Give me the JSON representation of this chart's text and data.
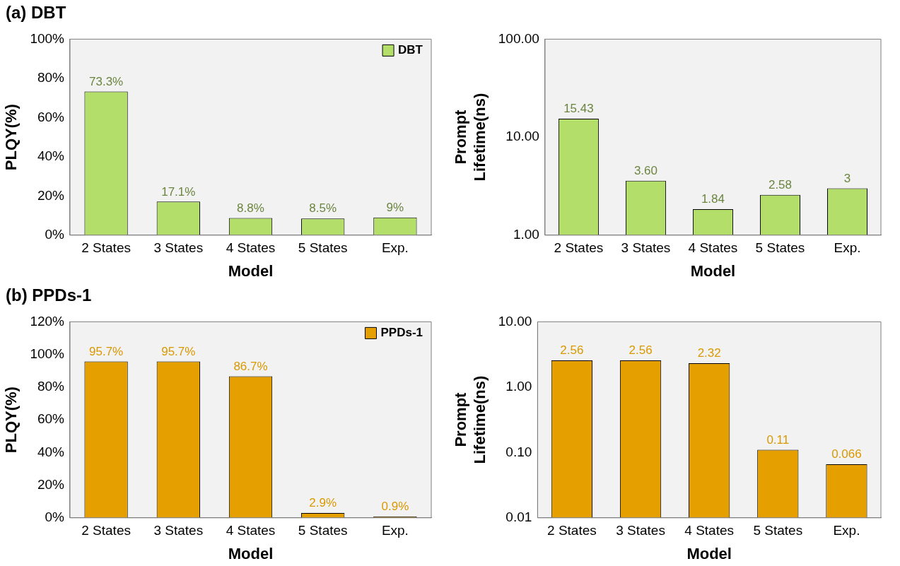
{
  "chart_data": [
    {
      "type": "bar",
      "title": "(a) DBT",
      "xlabel": "Model",
      "ylabel": "PLQY(%)",
      "categories": [
        "2 States",
        "3 States",
        "4 States",
        "5 States",
        "Exp."
      ],
      "series": [
        {
          "name": "DBT",
          "color": "#b3de69",
          "values": [
            73.3,
            17.1,
            8.8,
            8.5,
            9
          ],
          "value_labels": [
            "73.3%",
            "17.1%",
            "8.8%",
            "8.5%",
            "9%"
          ]
        }
      ],
      "ylim": [
        0,
        100
      ],
      "yticks": [
        {
          "value": 0,
          "label": "0%"
        },
        {
          "value": 20,
          "label": "20%"
        },
        {
          "value": 40,
          "label": "40%"
        },
        {
          "value": 60,
          "label": "60%"
        },
        {
          "value": 80,
          "label": "80%"
        },
        {
          "value": 100,
          "label": "100%"
        }
      ],
      "legend": "top right"
    },
    {
      "type": "bar",
      "xlabel": "Model",
      "ylabel": "Prompt Lifetime(ns)",
      "categories": [
        "2 States",
        "3 States",
        "4 States",
        "5 States",
        "Exp."
      ],
      "series": [
        {
          "color": "#b3de69",
          "values": [
            15.43,
            3.6,
            1.84,
            2.58,
            3
          ],
          "value_labels": [
            "15.43",
            "3.60",
            "1.84",
            "2.58",
            "3"
          ]
        }
      ],
      "log": true,
      "ylim": [
        1,
        100
      ],
      "yticks": [
        {
          "value": 1,
          "label": "1.00"
        },
        {
          "value": 10,
          "label": "10.00"
        },
        {
          "value": 100,
          "label": "100.00"
        }
      ]
    },
    {
      "type": "bar",
      "title": "(b) PPDs-1",
      "xlabel": "Model",
      "ylabel": "PLQY(%)",
      "categories": [
        "2 States",
        "3 States",
        "4 States",
        "5 States",
        "Exp."
      ],
      "series": [
        {
          "name": "PPDs-1",
          "color": "#e5a000",
          "values": [
            95.7,
            95.7,
            86.7,
            2.9,
            0.9
          ],
          "value_labels": [
            "95.7%",
            "95.7%",
            "86.7%",
            "2.9%",
            "0.9%"
          ]
        }
      ],
      "ylim": [
        0,
        120
      ],
      "yticks": [
        {
          "value": 0,
          "label": "0%"
        },
        {
          "value": 20,
          "label": "20%"
        },
        {
          "value": 40,
          "label": "40%"
        },
        {
          "value": 60,
          "label": "60%"
        },
        {
          "value": 80,
          "label": "80%"
        },
        {
          "value": 100,
          "label": "100%"
        },
        {
          "value": 120,
          "label": "120%"
        }
      ],
      "legend": "top right"
    },
    {
      "type": "bar",
      "xlabel": "Model",
      "ylabel": "Prompt Lifetime(ns)",
      "categories": [
        "2 States",
        "3 States",
        "4 States",
        "5 States",
        "Exp."
      ],
      "series": [
        {
          "color": "#e5a000",
          "values": [
            2.56,
            2.56,
            2.32,
            0.11,
            0.066
          ],
          "value_labels": [
            "2.56",
            "2.56",
            "2.32",
            "0.11",
            "0.066"
          ]
        }
      ],
      "log": true,
      "ylim": [
        0.01,
        10
      ],
      "yticks": [
        {
          "value": 0.01,
          "label": "0.01"
        },
        {
          "value": 0.1,
          "label": "0.10"
        },
        {
          "value": 1,
          "label": "1.00"
        },
        {
          "value": 10,
          "label": "10.00"
        }
      ]
    }
  ]
}
